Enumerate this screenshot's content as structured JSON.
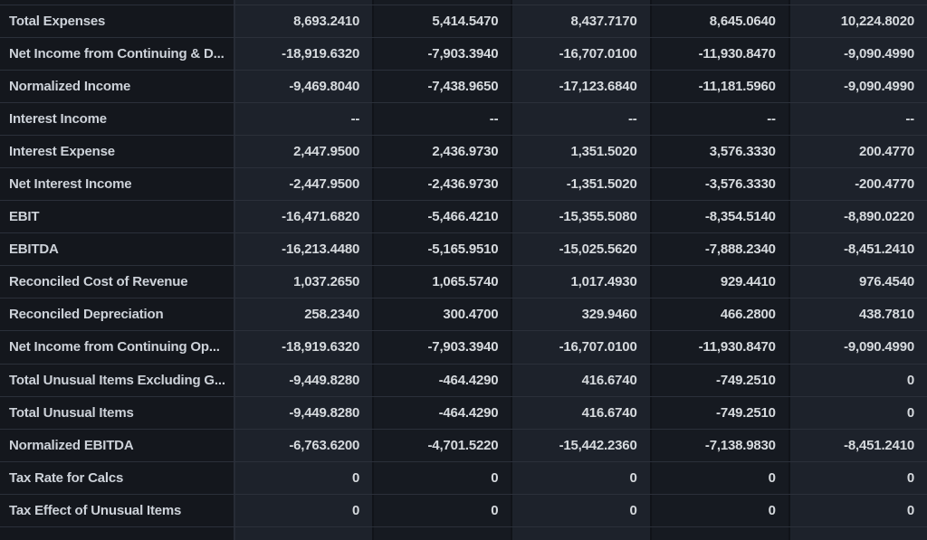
{
  "table": {
    "rows": [
      {
        "label": "Total Expenses",
        "values": [
          "8,693.2410",
          "5,414.5470",
          "8,437.7170",
          "8,645.0640",
          "10,224.8020"
        ]
      },
      {
        "label": "Net Income from Continuing & D...",
        "values": [
          "-18,919.6320",
          "-7,903.3940",
          "-16,707.0100",
          "-11,930.8470",
          "-9,090.4990"
        ]
      },
      {
        "label": "Normalized Income",
        "values": [
          "-9,469.8040",
          "-7,438.9650",
          "-17,123.6840",
          "-11,181.5960",
          "-9,090.4990"
        ]
      },
      {
        "label": "Interest Income",
        "values": [
          "--",
          "--",
          "--",
          "--",
          "--"
        ]
      },
      {
        "label": "Interest Expense",
        "values": [
          "2,447.9500",
          "2,436.9730",
          "1,351.5020",
          "3,576.3330",
          "200.4770"
        ]
      },
      {
        "label": "Net Interest Income",
        "values": [
          "-2,447.9500",
          "-2,436.9730",
          "-1,351.5020",
          "-3,576.3330",
          "-200.4770"
        ]
      },
      {
        "label": "EBIT",
        "values": [
          "-16,471.6820",
          "-5,466.4210",
          "-15,355.5080",
          "-8,354.5140",
          "-8,890.0220"
        ]
      },
      {
        "label": "EBITDA",
        "values": [
          "-16,213.4480",
          "-5,165.9510",
          "-15,025.5620",
          "-7,888.2340",
          "-8,451.2410"
        ]
      },
      {
        "label": "Reconciled Cost of Revenue",
        "values": [
          "1,037.2650",
          "1,065.5740",
          "1,017.4930",
          "929.4410",
          "976.4540"
        ]
      },
      {
        "label": "Reconciled Depreciation",
        "values": [
          "258.2340",
          "300.4700",
          "329.9460",
          "466.2800",
          "438.7810"
        ]
      },
      {
        "label": "Net Income from Continuing Op...",
        "values": [
          "-18,919.6320",
          "-7,903.3940",
          "-16,707.0100",
          "-11,930.8470",
          "-9,090.4990"
        ]
      },
      {
        "label": "Total Unusual Items Excluding G...",
        "values": [
          "-9,449.8280",
          "-464.4290",
          "416.6740",
          "-749.2510",
          "0"
        ]
      },
      {
        "label": "Total Unusual Items",
        "values": [
          "-9,449.8280",
          "-464.4290",
          "416.6740",
          "-749.2510",
          "0"
        ]
      },
      {
        "label": "Normalized EBITDA",
        "values": [
          "-6,763.6200",
          "-4,701.5220",
          "-15,442.2360",
          "-7,138.9830",
          "-8,451.2410"
        ]
      },
      {
        "label": "Tax Rate for Calcs",
        "values": [
          "0",
          "0",
          "0",
          "0",
          "0"
        ]
      },
      {
        "label": "Tax Effect of Unusual Items",
        "values": [
          "0",
          "0",
          "0",
          "0",
          "0"
        ]
      }
    ]
  },
  "colors": {
    "page_background": "#14171d",
    "label_column_background": "#14171d",
    "data_column_light": "#1d222b",
    "data_column_dark": "#161a21",
    "row_divider": "#2b303a",
    "column_divider": "#101319",
    "label_column_divider": "#272c36",
    "text": "#d6dade"
  }
}
